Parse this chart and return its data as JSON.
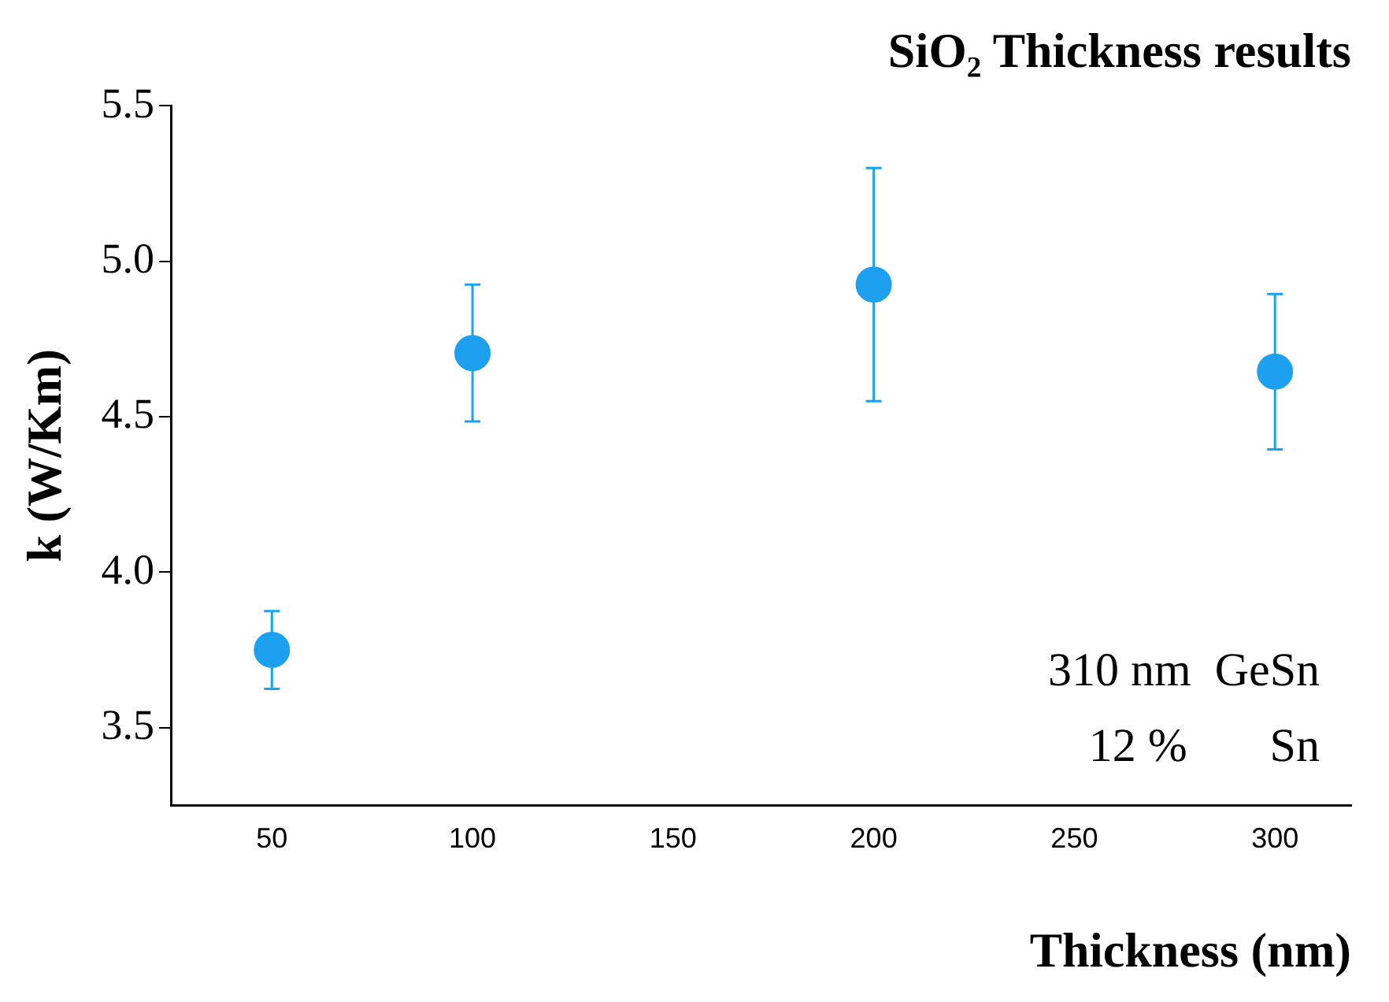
{
  "chart_data": {
    "type": "scatter",
    "title": "SiO₂ Thickness results",
    "xlabel": "Thickness (nm)",
    "ylabel": "k (W/Km)",
    "x": [
      50,
      100,
      200,
      300
    ],
    "series": [
      {
        "color": "#1ea0f0",
        "values": [
          3.75,
          4.705,
          4.925,
          4.645
        ],
        "errors": [
          0.125,
          0.22,
          0.375,
          0.25
        ]
      }
    ],
    "xlim": [
      25,
      319
    ],
    "xticks": [
      50,
      100,
      150,
      200,
      250,
      300
    ],
    "ylim": [
      3.25,
      5.5
    ],
    "yticks": [
      {
        "value": 3.5,
        "label": "3.5"
      },
      {
        "value": 4,
        "label": "4.0"
      },
      {
        "value": 4.5,
        "label": "4.5"
      },
      {
        "value": 5,
        "label": "5.0"
      },
      {
        "value": 5.5,
        "label": "5.5"
      }
    ],
    "annotations": [
      "310 nm  GeSn",
      "12 %       Sn"
    ],
    "grid": false,
    "legend": false,
    "marker": "circle"
  }
}
